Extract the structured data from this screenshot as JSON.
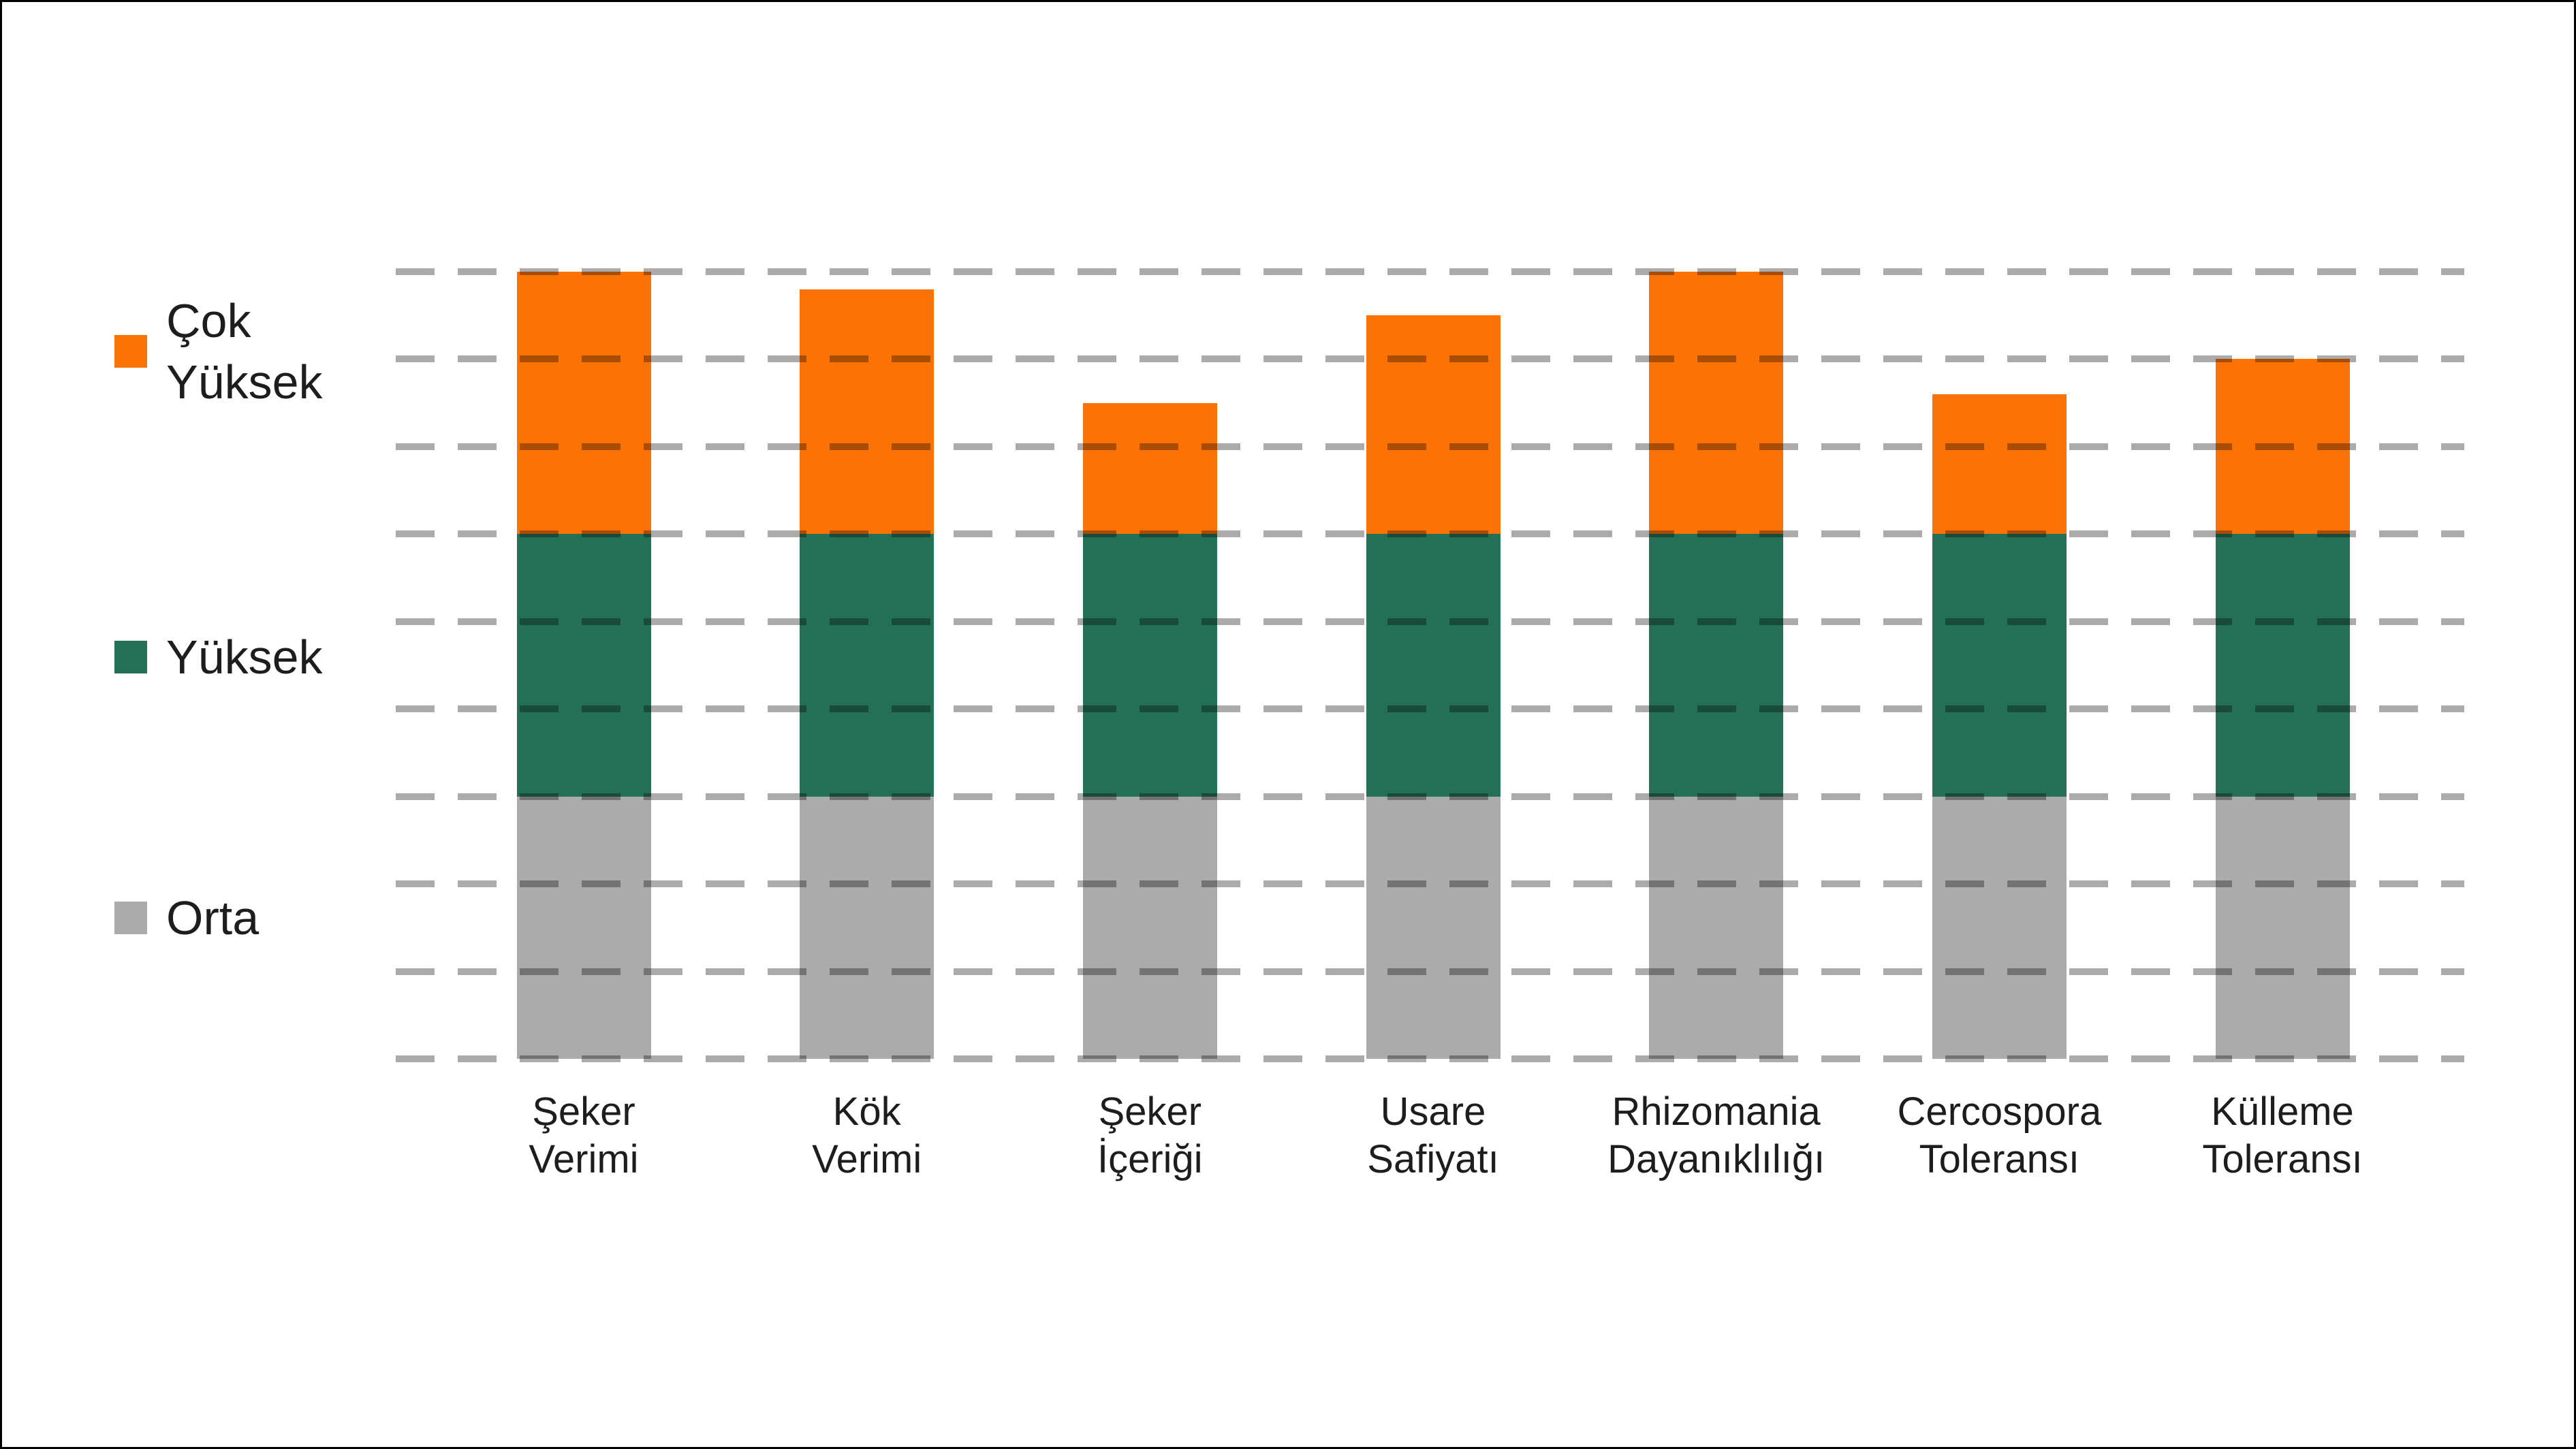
{
  "page": {
    "background_color": "#ffffff",
    "border_color": "#000000"
  },
  "legend": {
    "position": "left",
    "items": [
      {
        "id": "cok-yuksek",
        "lines": [
          "Çok",
          "Yüksek"
        ],
        "color": "#FB7305"
      },
      {
        "id": "yuksek",
        "lines": [
          "Yüksek"
        ],
        "color": "#247056"
      },
      {
        "id": "orta",
        "lines": [
          "Orta"
        ],
        "color": "#ABABAB"
      }
    ]
  },
  "chart_data": {
    "type": "bar",
    "stacked": true,
    "title": "",
    "xlabel": "",
    "ylabel": "",
    "ylim": [
      0,
      9
    ],
    "gridline_step": 1,
    "grid": "horizontal dashed lines, no tick labels, no axis lines",
    "gridline_color": "#ABABAB",
    "legend_position": "left",
    "categories": [
      "Şeker Verimi",
      "Kök Verimi",
      "Şeker İçeriği",
      "Usare Safiyatı",
      "Rhizomania Dayanıklılığı",
      "Cercospora Toleransı",
      "Külleme Toleransı"
    ],
    "category_lines": [
      [
        "Şeker",
        "Verimi"
      ],
      [
        "Kök",
        "Verimi"
      ],
      [
        "Şeker",
        "İçeriği"
      ],
      [
        "Usare",
        "Safiyatı"
      ],
      [
        "Rhizomania",
        "Dayanıklılığı"
      ],
      [
        "Cercospora",
        "Toleransı"
      ],
      [
        "Külleme",
        "Toleransı"
      ]
    ],
    "series": [
      {
        "name": "Orta",
        "color": "#ABABAB",
        "values": [
          3,
          3,
          3,
          3,
          3,
          3,
          3
        ]
      },
      {
        "name": "Yüksek",
        "color": "#247056",
        "values": [
          3,
          3,
          3,
          3,
          3,
          3,
          3
        ]
      },
      {
        "name": "Çok Yüksek",
        "color": "#FB7305",
        "values": [
          3,
          2.8,
          1.5,
          2.5,
          3,
          1.6,
          2
        ]
      }
    ],
    "stack_totals": [
      9,
      8.8,
      7.5,
      8.5,
      9,
      7.6,
      8
    ]
  }
}
